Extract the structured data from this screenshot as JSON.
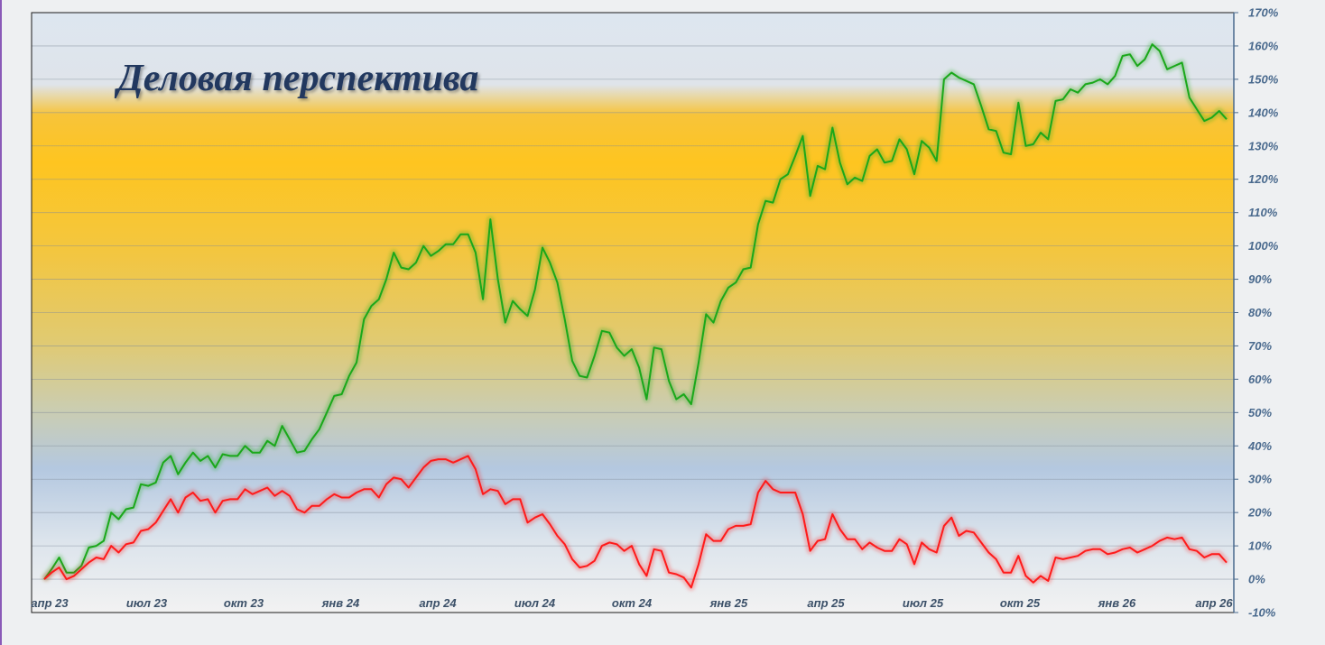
{
  "chart_data": {
    "type": "line",
    "title": "Деловая перспектива",
    "ylim": [
      -10,
      170
    ],
    "y_ticks": [
      "170%",
      "160%",
      "150%",
      "140%",
      "130%",
      "120%",
      "110%",
      "100%",
      "90%",
      "80%",
      "70%",
      "60%",
      "50%",
      "40%",
      "30%",
      "20%",
      "10%",
      "0%",
      "-10%"
    ],
    "x_tick_labels": [
      "апр 23",
      "июл 23",
      "окт 23",
      "янв 24",
      "апр 24",
      "июл 24",
      "окт 24",
      "янв 25",
      "апр 25",
      "июл 25",
      "окт 25",
      "янв 26",
      "апр 26"
    ],
    "grid": true,
    "y_axis_side": "right",
    "series": [
      {
        "color": "#1aa81a",
        "values": [
          0,
          3,
          6.5,
          2,
          2,
          4,
          9.5,
          10,
          11.5,
          20,
          18,
          21,
          21.5,
          28.5,
          28,
          29,
          35,
          37,
          31.5,
          35,
          38,
          35.5,
          37,
          33.5,
          37.5,
          37,
          37,
          40,
          38,
          38,
          41.5,
          40,
          46,
          42,
          38,
          38.5,
          42,
          45,
          50,
          55,
          55.5,
          61,
          65,
          78,
          82,
          84,
          90,
          98,
          93.5,
          93,
          95,
          100,
          97,
          98.5,
          100.5,
          100.5,
          103.5,
          103.5,
          98,
          84,
          108,
          90,
          77,
          83.5,
          81,
          79,
          87,
          99.5,
          95,
          89,
          78,
          65.5,
          61,
          60.5,
          67,
          74.5,
          74,
          69.5,
          67,
          69,
          63.5,
          54,
          69.5,
          69,
          59.5,
          54,
          55.5,
          52.5,
          65,
          79.5,
          77,
          83.5,
          87.5,
          89,
          93,
          93.5,
          106.5,
          113.5,
          113,
          120,
          121.5,
          127,
          133,
          115,
          124,
          123,
          135.5,
          125,
          118.5,
          120.5,
          119.5,
          127,
          129,
          125,
          125.5,
          132,
          129,
          121.5,
          131.5,
          129.5,
          125.5,
          150,
          152,
          150.5,
          149.5,
          148.5,
          142,
          135,
          134.5,
          128,
          127.5,
          143,
          130,
          130.5,
          134,
          132,
          143.5,
          144,
          147,
          146,
          148.5,
          149,
          150,
          148.5,
          151,
          157,
          157.5,
          154,
          156,
          160.5,
          158.5,
          153,
          154,
          155,
          144.5,
          141,
          137.5,
          138.5,
          140.5,
          138
        ]
      },
      {
        "color": "#ff1a1a",
        "values": [
          0,
          2,
          3.5,
          0,
          1,
          3,
          5,
          6.5,
          6,
          10,
          8,
          10.5,
          11,
          14.5,
          15,
          17,
          20.5,
          24,
          20,
          24.5,
          26,
          23.5,
          24,
          20,
          23.5,
          24,
          24,
          27,
          25.5,
          26.5,
          27.5,
          25,
          26.5,
          25,
          21,
          20,
          22,
          22,
          24,
          25.5,
          24.5,
          24.5,
          26,
          27,
          27,
          24.5,
          28.5,
          30.5,
          30,
          27.5,
          30.5,
          33.5,
          35.5,
          36,
          36,
          35,
          36,
          37,
          33,
          25.5,
          27,
          26.5,
          22.5,
          24,
          24,
          17,
          18.5,
          19.5,
          16.5,
          13,
          10.5,
          6,
          3.5,
          4,
          5.5,
          10,
          11,
          10.5,
          8.5,
          10,
          4.5,
          1,
          9,
          8.5,
          2,
          1.5,
          0.5,
          -2.5,
          4.5,
          13.5,
          11.5,
          11.5,
          15,
          16,
          16,
          16.5,
          26,
          29.5,
          27,
          26,
          26,
          26,
          19.5,
          8.5,
          11.5,
          12,
          19.5,
          15,
          12,
          12,
          9,
          11,
          9.5,
          8.5,
          8.5,
          12,
          10.5,
          4.5,
          11,
          9,
          8,
          16,
          18.5,
          13,
          14.5,
          14,
          11,
          8,
          6,
          2,
          2,
          7,
          1,
          -1,
          1,
          -0.5,
          6.5,
          6,
          6.5,
          7,
          8.5,
          9,
          9,
          7.5,
          8,
          9,
          9.5,
          8,
          9,
          10,
          11.5,
          12.5,
          12,
          12.5,
          9,
          8.5,
          6.5,
          7.5,
          7.5,
          5
        ]
      }
    ]
  }
}
